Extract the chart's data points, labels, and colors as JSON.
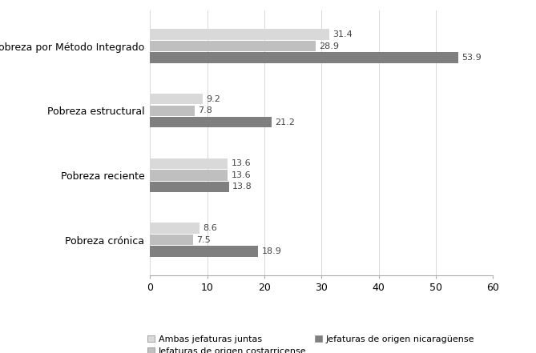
{
  "categories": [
    "Pobreza por Método Integrado",
    "Pobreza estructural",
    "Pobreza reciente",
    "Pobreza crónica"
  ],
  "series_names": [
    "Ambas jefaturas juntas",
    "Jefaturas de origen costarricense",
    "Jefaturas de origen nicaragüense"
  ],
  "values": {
    "Ambas jefaturas juntas": [
      31.4,
      9.2,
      13.6,
      8.6
    ],
    "Jefaturas de origen costarricense": [
      28.9,
      7.8,
      13.6,
      7.5
    ],
    "Jefaturas de origen nicaragüense": [
      53.9,
      21.2,
      13.8,
      18.9
    ]
  },
  "colors": {
    "Ambas jefaturas juntas": "#d9d9d9",
    "Jefaturas de origen costarricense": "#bfbfbf",
    "Jefaturas de origen nicaragüense": "#7f7f7f"
  },
  "xlim": [
    0,
    60
  ],
  "xticks": [
    0,
    10,
    20,
    30,
    40,
    50,
    60
  ],
  "bar_height": 0.18,
  "background_color": "#ffffff",
  "label_fontsize": 9,
  "tick_fontsize": 9,
  "legend_fontsize": 8,
  "value_fontsize": 8
}
